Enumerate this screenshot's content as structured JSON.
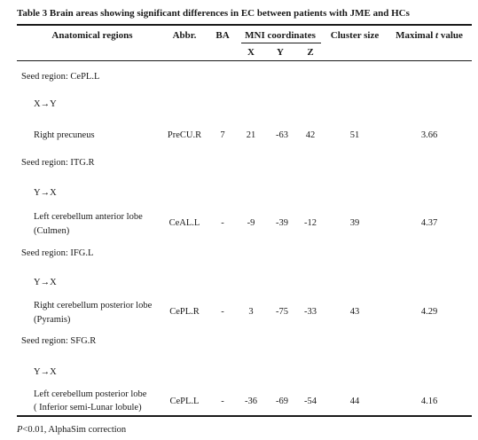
{
  "title": "Table 3 Brain areas showing significant differences in EC between patients with JME and HCs",
  "columns": {
    "region": "Anatomical regions",
    "abbr": "Abbr.",
    "ba": "BA",
    "mni": "MNI coordinates",
    "x": "X",
    "y": "Y",
    "z": "Z",
    "cluster": "Cluster size",
    "tvalue_prefix": "Maximal ",
    "tvalue_t": "t",
    "tvalue_suffix": " value"
  },
  "groups": [
    {
      "seed": "Seed region: CePL.L",
      "direction": "X→Y",
      "row": {
        "region_line1": "Right precuneus",
        "region_line2": "",
        "abbr": "PreCU.R",
        "ba": "7",
        "x": "21",
        "y": "-63",
        "z": "42",
        "cluster": "51",
        "t": "3.66"
      }
    },
    {
      "seed": "Seed region: ITG.R",
      "direction": "Y→X",
      "row": {
        "region_line1": "Left cerebellum anterior lobe",
        "region_line2": "(Culmen)",
        "abbr": "CeAL.L",
        "ba": "-",
        "x": "-9",
        "y": "-39",
        "z": "-12",
        "cluster": "39",
        "t": "4.37"
      }
    },
    {
      "seed": "Seed region: IFG.L",
      "direction": "Y→X",
      "row": {
        "region_line1": "Right cerebellum posterior lobe",
        "region_line2": "(Pyramis)",
        "abbr": "CePL.R",
        "ba": "-",
        "x": "3",
        "y": "-75",
        "z": "-33",
        "cluster": "43",
        "t": "4.29"
      }
    },
    {
      "seed": "Seed region: SFG.R",
      "direction": "Y→X",
      "row": {
        "region_line1": "Left cerebellum posterior lobe",
        "region_line2": "( Inferior semi-Lunar lobule)",
        "abbr": "CePL.L",
        "ba": "-",
        "x": "-36",
        "y": "-69",
        "z": "-54",
        "cluster": "44",
        "t": "4.16"
      }
    }
  ],
  "footnote": {
    "p": "P",
    "rest": "<0.01, AlphaSim correction"
  }
}
